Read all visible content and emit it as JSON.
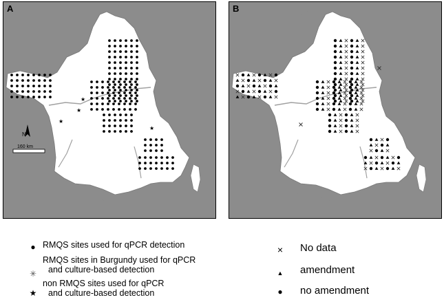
{
  "panels": [
    {
      "label": "A"
    },
    {
      "label": "B"
    }
  ],
  "scale_bar_label": "160  km",
  "north_label": "N",
  "legend_left": [
    {
      "symbol": "dot",
      "lines": [
        "RMQS sites used for qPCR detection"
      ]
    },
    {
      "symbol": "asterisk",
      "lines": [
        "RMQS sites in Burgundy used for qPCR",
        "and culture-based detection"
      ]
    },
    {
      "symbol": "star",
      "lines": [
        "non RMQS sites used for qPCR",
        "and culture-based detection"
      ]
    }
  ],
  "legend_right": [
    {
      "symbol": "cross",
      "label": "No data"
    },
    {
      "symbol": "triangle",
      "label": "amendment"
    },
    {
      "symbol": "dot",
      "label": "no amendment"
    }
  ],
  "colors": {
    "sea_land_other": "#8c8c8c",
    "france": "#ffffff",
    "border": "#000000",
    "river": "#a0a0a0"
  }
}
